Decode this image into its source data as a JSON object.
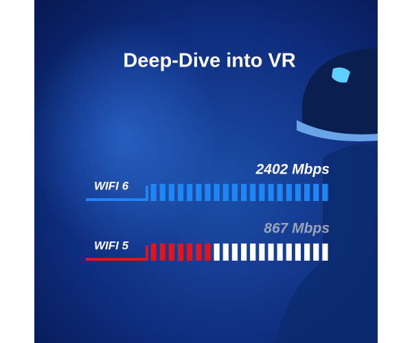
{
  "chart_data": {
    "type": "bar",
    "orientation": "horizontal",
    "title": "Deep-Dive into VR",
    "categories": [
      "WIFI 6",
      "WIFI 5"
    ],
    "values": [
      2402,
      867
    ],
    "value_labels": [
      "2402 Mbps",
      "867 Mbps"
    ],
    "colors": [
      "#1f86f5",
      "#e3141f"
    ],
    "track_color": "#ffffff",
    "xlim": [
      0,
      2402
    ]
  }
}
